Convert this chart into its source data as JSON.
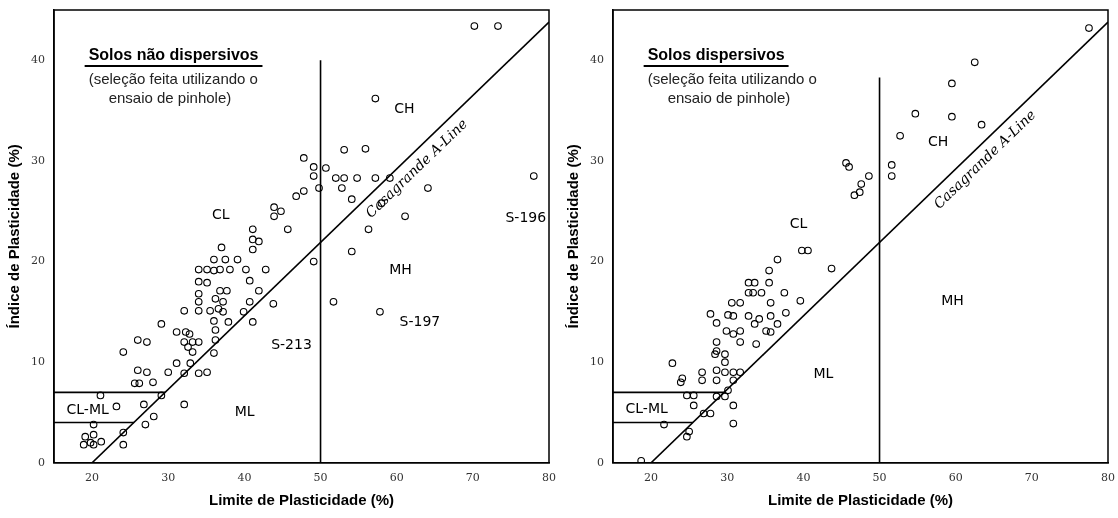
{
  "chart_data": [
    {
      "type": "scatter",
      "title": "Solos não dispersivos",
      "subtitle": "(seleção feita utilizando o ensaio de pinhole)",
      "xlabel": "Limite de Plasticidade (%)",
      "ylabel": "Índice de Plasticidade (%)",
      "xlim": [
        15,
        80
      ],
      "ylim": [
        0,
        45
      ],
      "xticks": [
        20,
        30,
        40,
        50,
        60,
        70,
        80
      ],
      "yticks": [
        0,
        10,
        20,
        30,
        40
      ],
      "marker": "circle",
      "series": [
        {
          "color": "#000000",
          "x": [
            41.1,
            45.7,
            41.1,
            41.9,
            41.1,
            37,
            36,
            37.5,
            36.8,
            38.1,
            39.1,
            40.2,
            34,
            35.1,
            36,
            42.8,
            34,
            35.1,
            36.8,
            37.7,
            40.7,
            41.9,
            34,
            36.2,
            37.2,
            34,
            34,
            35.5,
            36.6,
            37.2,
            32.1,
            40.7,
            43.8,
            39.9,
            36,
            37.9,
            41.1,
            29.1,
            36.2,
            31.1,
            32.3,
            32.8,
            36.2,
            32.1,
            33.2,
            34,
            26,
            27.2,
            32.6,
            33.2,
            24.1,
            36,
            31.1,
            32.9,
            30,
            32.1,
            34,
            35.1,
            26,
            27.2,
            25.6,
            26.2,
            28,
            21.1,
            29.1,
            23.2,
            26.8,
            32.1,
            28.1,
            27,
            20.2,
            20.2,
            19.1,
            21.2,
            19.8,
            18.9,
            20.2,
            24.1,
            24.1,
            49.1,
            70.2,
            73.3,
            57.2,
            47.8,
            49.1,
            49.1,
            50.7,
            53.1,
            55.9,
            52,
            53.1,
            54.8,
            57.2,
            59.1,
            52.8,
            64.1,
            46.8,
            47.8,
            49.8,
            54.1,
            78,
            58,
            61.1,
            56.3,
            54.1,
            51.7,
            57.8,
            43.9,
            44.8,
            43.9
          ],
          "values": [
            23.2,
            23.2,
            22.2,
            22,
            21.2,
            21.4,
            20.2,
            20.2,
            19.2,
            19.2,
            20.2,
            19.2,
            19.2,
            19.2,
            19.1,
            19.2,
            18,
            17.9,
            17.1,
            17.1,
            18.1,
            17.1,
            16.8,
            16.3,
            16,
            16,
            15.1,
            15.1,
            15.3,
            15,
            15.1,
            16,
            15.8,
            15,
            14.1,
            14,
            14,
            13.8,
            13.2,
            13,
            13,
            12.8,
            12.2,
            12,
            12,
            12,
            12.2,
            12,
            11.5,
            11,
            11,
            10.9,
            9.9,
            9.9,
            9,
            8.9,
            8.9,
            9,
            9.2,
            9,
            7.9,
            7.9,
            8,
            6.7,
            6.7,
            5.6,
            5.8,
            5.8,
            4.6,
            3.8,
            3.8,
            2.8,
            2.6,
            2.1,
            2,
            1.8,
            1.8,
            3,
            1.8,
            20,
            43.4,
            43.4,
            36.2,
            30.3,
            29.4,
            28.5,
            29.3,
            31.1,
            31.2,
            28.3,
            28.3,
            28.3,
            28.3,
            28.3,
            27.3,
            27.3,
            26.5,
            27,
            27.3,
            26.2,
            28.5,
            25.8,
            24.5,
            23.2,
            21,
            16,
            15,
            25.4,
            25,
            24.5
          ]
        },
        {
          "type": "line",
          "marker": "none",
          "color": "#000000",
          "x": [
            20,
            80
          ],
          "values": [
            0,
            43.8
          ]
        },
        {
          "type": "line",
          "marker": "none",
          "color": "#000000",
          "x": [
            50,
            50
          ],
          "values": [
            0,
            40
          ]
        },
        {
          "type": "line",
          "marker": "none",
          "color": "#000000",
          "x": [
            15,
            25.5
          ],
          "values": [
            4,
            4
          ]
        },
        {
          "type": "line",
          "marker": "none",
          "color": "#000000",
          "x": [
            15,
            29.6
          ],
          "values": [
            7,
            7
          ]
        }
      ],
      "annotations": [
        "CL",
        "CH",
        "MH",
        "ML",
        "CL-ML",
        {
          "text": "Casagrande A-Line",
          "x": 61.4,
          "y": 30.2
        },
        {
          "text": "S-196",
          "x": 78,
          "y": 28.5
        },
        {
          "text": "S-213",
          "x": 51.7,
          "y": 16
        },
        {
          "text": "S-197",
          "x": 57.8,
          "y": 15
        }
      ]
    },
    {
      "type": "scatter",
      "title": "Solos dispersivos",
      "subtitle": "(seleção feita utilizando o ensaio de pinhole)",
      "xlabel": "Limite de Plasticidade (%)",
      "ylabel": "Índice de Plasticidade (%)",
      "xlim": [
        15,
        80
      ],
      "ylim": [
        0,
        45
      ],
      "xticks": [
        20,
        30,
        40,
        50,
        60,
        70,
        80
      ],
      "yticks": [
        0,
        10,
        20,
        30,
        40
      ],
      "marker": "circle",
      "series": [
        {
          "color": "#000000",
          "x": [
            18.7,
            21.7,
            22.8,
            24.1,
            23.9,
            24.7,
            25.6,
            25.6,
            25,
            24.7,
            26.9,
            27.8,
            26.7,
            26.7,
            27.8,
            28.6,
            28.6,
            28.6,
            28.4,
            29.7,
            29.7,
            28.6,
            28.6,
            29.7,
            28.6,
            29.7,
            30.1,
            30.8,
            31.7,
            30.8,
            30.8,
            30.8,
            29.9,
            30.8,
            31.7,
            31.7,
            30.1,
            30.8,
            30.6,
            31.7,
            32.8,
            32.8,
            33.4,
            34.5,
            32.8,
            33.6,
            34.2,
            33.6,
            33.8,
            35.1,
            35.7,
            35.7,
            35.7,
            36.6,
            35.5,
            35.5,
            36.6,
            37.5,
            37.7,
            39.6,
            39.8,
            40.6,
            43.7,
            77.5,
            62.5,
            59.5,
            54.7,
            59.5,
            63.4,
            52.7,
            51.6,
            51.6,
            45.6,
            46,
            48.6,
            47.6,
            46.7,
            47.4
          ],
          "values": [
            0.2,
            3.8,
            9.9,
            8.4,
            8,
            6.7,
            6.7,
            5.7,
            3.1,
            2.6,
            4.9,
            4.9,
            9,
            8.2,
            14.8,
            13.9,
            12,
            11.1,
            10.8,
            10.8,
            10,
            9.2,
            8.2,
            9,
            6.6,
            6.6,
            7.2,
            9,
            9,
            8.2,
            5.7,
            3.9,
            13.1,
            12.8,
            13.1,
            12,
            14.7,
            14.6,
            15.9,
            15.9,
            14.6,
            16.9,
            16.9,
            16.9,
            17.9,
            17.9,
            14.3,
            13.8,
            11.8,
            13.1,
            13,
            14.6,
            15.9,
            13.8,
            17.9,
            19.1,
            20.2,
            16.9,
            14.9,
            16.1,
            21.1,
            21.1,
            19.3,
            43.2,
            39.8,
            37.7,
            34.7,
            34.4,
            33.6,
            32.5,
            29.6,
            28.5,
            29.8,
            29.4,
            28.5,
            27.7,
            26.6,
            26.9
          ]
        },
        {
          "type": "line",
          "marker": "none",
          "color": "#000000",
          "x": [
            20,
            80
          ],
          "values": [
            0,
            43.8
          ]
        },
        {
          "type": "line",
          "marker": "none",
          "color": "#000000",
          "x": [
            50,
            50
          ],
          "values": [
            0,
            38.3
          ]
        },
        {
          "type": "line",
          "marker": "none",
          "color": "#000000",
          "x": [
            15,
            25.5
          ],
          "values": [
            4,
            4
          ]
        },
        {
          "type": "line",
          "marker": "none",
          "color": "#000000",
          "x": [
            15,
            29.6
          ],
          "values": [
            7,
            7
          ]
        }
      ],
      "annotations": [
        "CL",
        "CH",
        "MH",
        "ML",
        "CL-ML",
        {
          "text": "Casagrande A-Line",
          "x": 62.6,
          "y": 31.1
        }
      ]
    }
  ]
}
